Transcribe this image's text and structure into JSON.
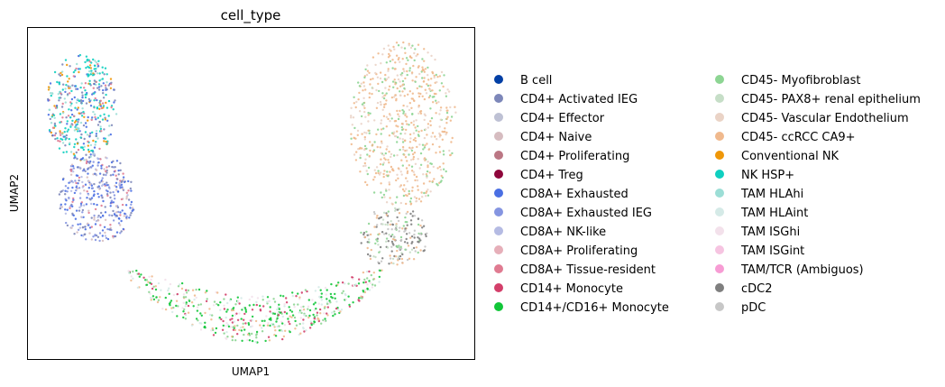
{
  "chart_data": {
    "type": "scatter",
    "title": "cell_type",
    "xlabel": "UMAP1",
    "ylabel": "UMAP2",
    "xlim": [
      0,
      100
    ],
    "ylim": [
      0,
      100
    ],
    "xticks": false,
    "yticks": false,
    "grid": false,
    "legend_placement": "right, two columns",
    "legend_columns": [
      [
        {
          "name": "B cell",
          "color": "#023fa5"
        },
        {
          "name": "CD4+ Activated IEG",
          "color": "#7d87b9"
        },
        {
          "name": "CD4+ Effector",
          "color": "#bec1d4"
        },
        {
          "name": "CD4+ Naive",
          "color": "#d6bcc0"
        },
        {
          "name": "CD4+ Proliferating",
          "color": "#bb7784"
        },
        {
          "name": "CD4+ Treg",
          "color": "#8e063b"
        },
        {
          "name": "CD8A+ Exhausted",
          "color": "#4a6fe3"
        },
        {
          "name": "CD8A+ Exhausted IEG",
          "color": "#8595e1"
        },
        {
          "name": "CD8A+ NK-like",
          "color": "#b5bbe3"
        },
        {
          "name": "CD8A+ Proliferating",
          "color": "#e6afb9"
        },
        {
          "name": "CD8A+ Tissue-resident",
          "color": "#e07b91"
        },
        {
          "name": "CD14+ Monocyte",
          "color": "#d33f6a"
        },
        {
          "name": "CD14+/CD16+ Monocyte",
          "color": "#11c638"
        }
      ],
      [
        {
          "name": "CD45- Myofibroblast",
          "color": "#8dd593"
        },
        {
          "name": "CD45- PAX8+ renal epithelium",
          "color": "#c6dec7"
        },
        {
          "name": "CD45- Vascular Endothelium",
          "color": "#ead3c6"
        },
        {
          "name": "CD45- ccRCC CA9+",
          "color": "#f0b98d"
        },
        {
          "name": "Conventional NK",
          "color": "#ef9708"
        },
        {
          "name": "NK HSP+",
          "color": "#0fcfc0"
        },
        {
          "name": "TAM HLAhi",
          "color": "#9cded6"
        },
        {
          "name": "TAM HLAint",
          "color": "#d5eae7"
        },
        {
          "name": "TAM ISGhi",
          "color": "#f3e1eb"
        },
        {
          "name": "TAM ISGint",
          "color": "#f6c4e1"
        },
        {
          "name": "TAM/TCR (Ambiguos)",
          "color": "#f79cd4"
        },
        {
          "name": "cDC2",
          "color": "#7f7f7f"
        },
        {
          "name": "pDC",
          "color": "#c7c7c7"
        }
      ]
    ],
    "clusters": [
      {
        "region": "left arm, top",
        "x": [
          4,
          20
        ],
        "y": [
          60,
          92
        ],
        "composition": [
          "NK HSP+",
          "TAM HLAhi",
          "CD8A+ Exhausted",
          "CD4+ Activated IEG",
          "CD8A+ Tissue-resident",
          "Conventional NK"
        ]
      },
      {
        "region": "left arm, middle",
        "x": [
          7,
          24
        ],
        "y": [
          35,
          62
        ],
        "composition": [
          "CD8A+ Exhausted",
          "CD4+ Activated IEG",
          "CD8A+ Exhausted IEG",
          "CD8A+ NK-like",
          "CD4+ Naive",
          "CD8A+ Tissue-resident"
        ]
      },
      {
        "region": "bottom arc",
        "x": [
          22,
          80
        ],
        "y": [
          8,
          32
        ],
        "composition": [
          "CD14+/CD16+ Monocyte",
          "CD45- Myofibroblast",
          "TAM HLAint",
          "TAM ISGhi",
          "CD14+ Monocyte",
          "CD45- ccRCC CA9+"
        ]
      },
      {
        "region": "right lower stalk",
        "x": [
          74,
          90
        ],
        "y": [
          28,
          46
        ],
        "composition": [
          "cDC2",
          "pDC",
          "CD45- Myofibroblast",
          "CD45- PAX8+ renal epithelium",
          "CD45- ccRCC CA9+"
        ]
      },
      {
        "region": "right upper lobe",
        "x": [
          72,
          96
        ],
        "y": [
          46,
          96
        ],
        "composition": [
          "CD45- ccRCC CA9+",
          "CD45- Vascular Endothelium",
          "CD45- Myofibroblast"
        ]
      }
    ]
  }
}
